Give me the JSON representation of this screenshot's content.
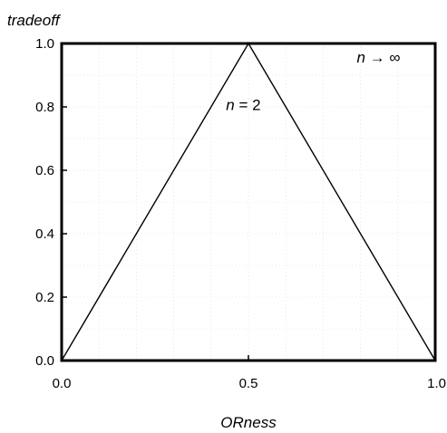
{
  "chart_data": {
    "type": "line",
    "title": "",
    "xlabel": "ORness",
    "ylabel": "tradeoff",
    "xlim": [
      0.0,
      1.0
    ],
    "ylim": [
      0.0,
      1.0
    ],
    "x_ticks": [
      "0.0",
      "0.5",
      "1.0"
    ],
    "y_ticks": [
      "0.0",
      "0.2",
      "0.4",
      "0.6",
      "0.8",
      "1.0"
    ],
    "grid": true,
    "series": [
      {
        "x": [
          0.0,
          0.5,
          1.0
        ],
        "y": [
          0.0,
          1.0,
          0.0
        ]
      },
      {
        "x": [
          0.0,
          1.0
        ],
        "y": [
          1.0,
          1.0
        ]
      }
    ],
    "annotations": [
      {
        "italic": "n",
        "rest": " = 2",
        "x": 0.44,
        "y": 0.79
      },
      {
        "italic": "n",
        "rest": " → ∞",
        "x": 0.79,
        "y": 0.94
      }
    ]
  }
}
